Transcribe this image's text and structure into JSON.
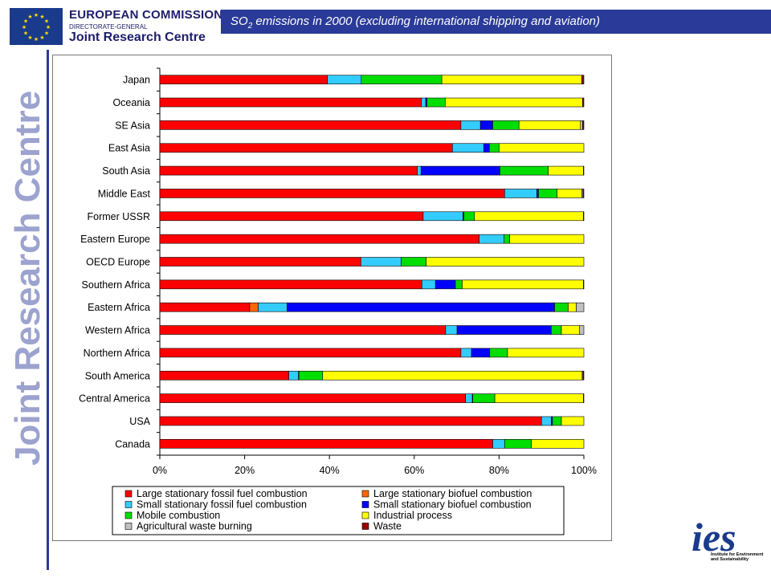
{
  "header": {
    "org": "EUROPEAN COMMISSION",
    "dg": "DIRECTORATE-GENERAL",
    "unit": "Joint Research Centre",
    "title_pre": "SO",
    "title_sub": "2",
    "title_post": " emissions in 2000 (excluding international shipping and aviation)"
  },
  "sidebar": {
    "text": "Joint Research Centre"
  },
  "footer": {
    "logo_text": "ies",
    "logo_caption": "Institute for Environment and Sustainability"
  },
  "colors": {
    "header_bar": "#2a3a98",
    "series": [
      "#ff0000",
      "#ff6600",
      "#33ccff",
      "#0000ff",
      "#00dd00",
      "#ffff00",
      "#c0c0c0",
      "#990000"
    ]
  },
  "chart_data": {
    "type": "bar",
    "orientation": "horizontal",
    "stacked": "percent",
    "xlim": [
      0,
      100
    ],
    "xticks": [
      "0%",
      "20%",
      "40%",
      "60%",
      "80%",
      "100%"
    ],
    "grid": false,
    "legend_position": "bottom",
    "categories": [
      "Japan",
      "Oceania",
      "SE Asia",
      "East Asia",
      "South Asia",
      "Middle East",
      "Former USSR",
      "Eastern Europe",
      "OECD Europe",
      "Southern Africa",
      "Eastern Africa",
      "Western Africa",
      "Northern Africa",
      "South America",
      "Central America",
      "USA",
      "Canada"
    ],
    "series": [
      {
        "name": "Large stationary fossil fuel combustion",
        "values": [
          39.5,
          61.7,
          71.0,
          69.0,
          60.7,
          81.3,
          62.1,
          75.3,
          47.4,
          61.8,
          21.2,
          67.4,
          71.0,
          30.4,
          72.1,
          90.0,
          78.5
        ]
      },
      {
        "name": "Large stationary biofuel combustion",
        "values": [
          0,
          0,
          0,
          0,
          0,
          0,
          0,
          0,
          0,
          0,
          2.0,
          0,
          0,
          0,
          0,
          0,
          0
        ]
      },
      {
        "name": "Small stationary fossil fuel combustion",
        "values": [
          8.0,
          1.0,
          4.6,
          7.4,
          0.9,
          7.6,
          9.4,
          5.9,
          9.5,
          3.2,
          6.8,
          2.7,
          2.5,
          2.3,
          1.6,
          2.3,
          2.8
        ]
      },
      {
        "name": "Small stationary biofuel combustion",
        "values": [
          0,
          0.3,
          2.9,
          1.3,
          18.6,
          0.4,
          0.2,
          0,
          0,
          4.7,
          63.1,
          22.2,
          4.3,
          0.1,
          0.1,
          0.3,
          0
        ]
      },
      {
        "name": "Mobile combustion",
        "values": [
          19.0,
          4.3,
          6.2,
          2.3,
          11.4,
          4.4,
          2.5,
          1.3,
          5.9,
          1.6,
          3.2,
          2.4,
          4.2,
          5.6,
          5.2,
          2.1,
          6.3
        ]
      },
      {
        "name": "Industrial process",
        "values": [
          33.0,
          32.4,
          14.5,
          20.0,
          8.3,
          5.8,
          25.7,
          17.5,
          37.2,
          28.6,
          1.9,
          4.3,
          18.0,
          61.2,
          20.9,
          5.3,
          12.4
        ]
      },
      {
        "name": "Agricultural waste burning",
        "values": [
          0,
          0,
          0.5,
          0,
          0,
          0.3,
          0,
          0,
          0,
          0,
          1.8,
          1.0,
          0,
          0.2,
          0,
          0,
          0
        ]
      },
      {
        "name": "Waste",
        "values": [
          0.5,
          0.3,
          0.3,
          0,
          0.1,
          0.2,
          0.1,
          0,
          0,
          0.1,
          0,
          0,
          0,
          0.2,
          0.1,
          0,
          0
        ]
      }
    ]
  }
}
